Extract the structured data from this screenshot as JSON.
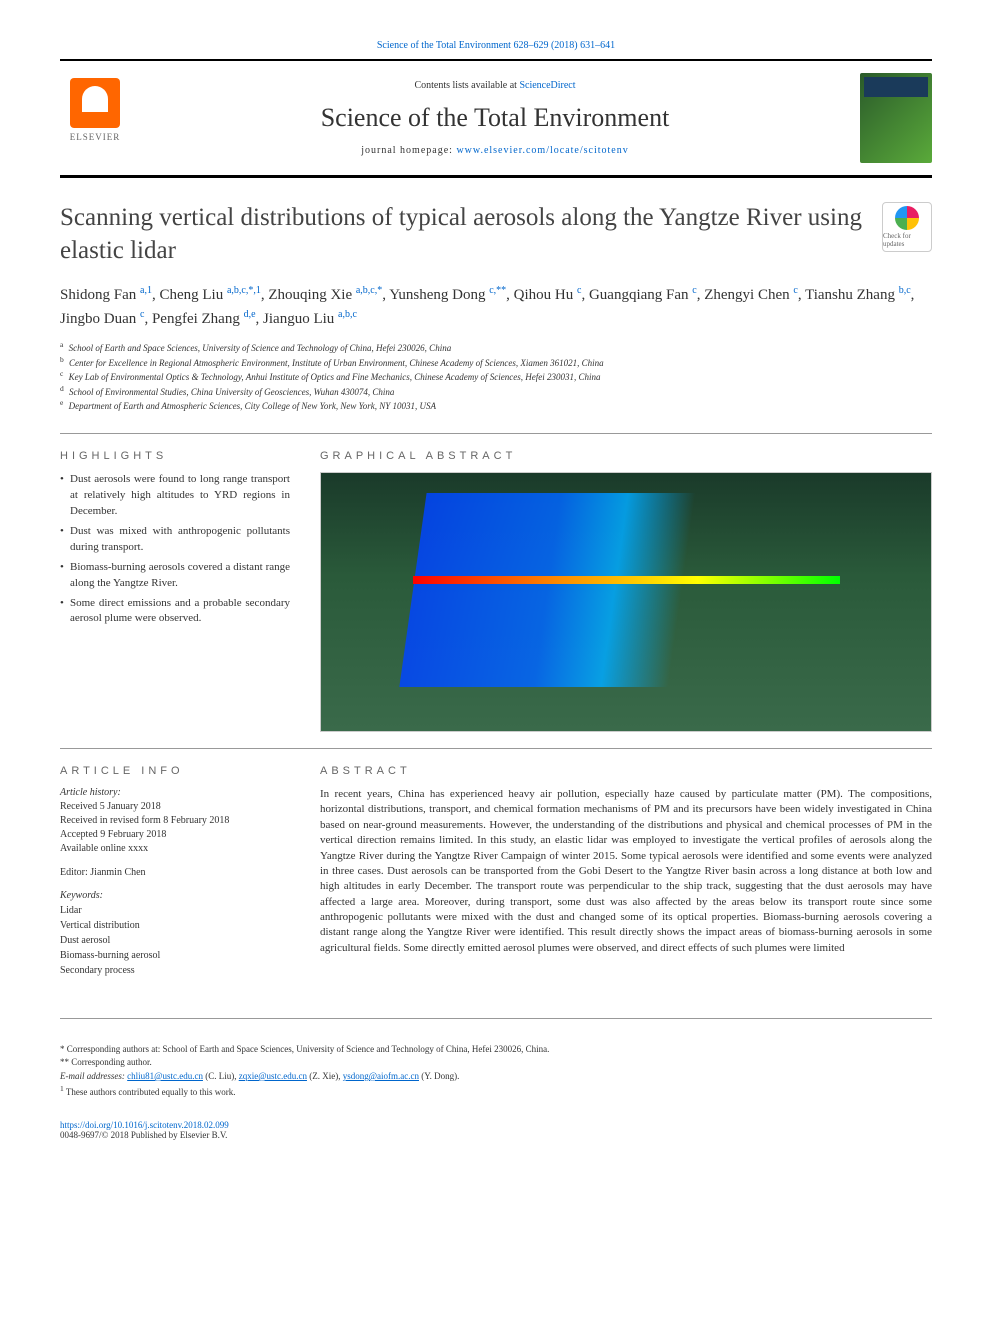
{
  "header": {
    "topLink": "Science of the Total Environment 628–629 (2018) 631–641",
    "contentsText": "Contents lists available at ",
    "contentsLink": "ScienceDirect",
    "journalName": "Science of the Total Environment",
    "homepageLabel": "journal homepage: ",
    "homepageLink": "www.elsevier.com/locate/scitotenv",
    "publisherName": "ELSEVIER",
    "coverLabel": "Science Total Environment"
  },
  "article": {
    "title": "Scanning vertical distributions of typical aerosols along the Yangtze River using elastic lidar",
    "checkUpdates": "Check for updates"
  },
  "authors": [
    {
      "name": "Shidong Fan",
      "aff": "a,1"
    },
    {
      "name": "Cheng Liu",
      "aff": "a,b,c,*,1"
    },
    {
      "name": "Zhouqing Xie",
      "aff": "a,b,c,*"
    },
    {
      "name": "Yunsheng Dong",
      "aff": "c,**"
    },
    {
      "name": "Qihou Hu",
      "aff": "c"
    },
    {
      "name": "Guangqiang Fan",
      "aff": "c"
    },
    {
      "name": "Zhengyi Chen",
      "aff": "c"
    },
    {
      "name": "Tianshu Zhang",
      "aff": "b,c"
    },
    {
      "name": "Jingbo Duan",
      "aff": "c"
    },
    {
      "name": "Pengfei Zhang",
      "aff": "d,e"
    },
    {
      "name": "Jianguo Liu",
      "aff": "a,b,c"
    }
  ],
  "affiliations": [
    {
      "sup": "a",
      "text": "School of Earth and Space Sciences, University of Science and Technology of China, Hefei 230026, China"
    },
    {
      "sup": "b",
      "text": "Center for Excellence in Regional Atmospheric Environment, Institute of Urban Environment, Chinese Academy of Sciences, Xiamen 361021, China"
    },
    {
      "sup": "c",
      "text": "Key Lab of Environmental Optics & Technology, Anhui Institute of Optics and Fine Mechanics, Chinese Academy of Sciences, Hefei 230031, China"
    },
    {
      "sup": "d",
      "text": "School of Environmental Studies, China University of Geosciences, Wuhan 430074, China"
    },
    {
      "sup": "e",
      "text": "Department of Earth and Atmospheric Sciences, City College of New York, New York, NY 10031, USA"
    }
  ],
  "sections": {
    "highlights": "HIGHLIGHTS",
    "graphicalAbstract": "GRAPHICAL ABSTRACT",
    "articleInfo": "ARTICLE INFO",
    "abstract": "ABSTRACT"
  },
  "highlights": [
    "Dust aerosols were found to long range transport at relatively high altitudes to YRD regions in December.",
    "Dust was mixed with anthropogenic pollutants during transport.",
    "Biomass-burning aerosols covered a distant range along the Yangtze River.",
    "Some direct emissions and a probable secondary aerosol plume were observed."
  ],
  "articleInfo": {
    "historyLabel": "Article history:",
    "received": "Received 5 January 2018",
    "revised": "Received in revised form 8 February 2018",
    "accepted": "Accepted 9 February 2018",
    "available": "Available online xxxx",
    "editorLabel": "Editor:",
    "editor": "Jianmin Chen",
    "keywordsLabel": "Keywords:",
    "keywords": [
      "Lidar",
      "Vertical distribution",
      "Dust aerosol",
      "Biomass-burning aerosol",
      "Secondary process"
    ]
  },
  "abstract": "In recent years, China has experienced heavy air pollution, especially haze caused by particulate matter (PM). The compositions, horizontal distributions, transport, and chemical formation mechanisms of PM and its precursors have been widely investigated in China based on near-ground measurements. However, the understanding of the distributions and physical and chemical processes of PM in the vertical direction remains limited. In this study, an elastic lidar was employed to investigate the vertical profiles of aerosols along the Yangtze River during the Yangtze River Campaign of winter 2015. Some typical aerosols were identified and some events were analyzed in three cases. Dust aerosols can be transported from the Gobi Desert to the Yangtze River basin across a long distance at both low and high altitudes in early December. The transport route was perpendicular to the ship track, suggesting that the dust aerosols may have affected a large area. Moreover, during transport, some dust was also affected by the areas below its transport route since some anthropogenic pollutants were mixed with the dust and changed some of its optical properties. Biomass-burning aerosols covering a distant range along the Yangtze River were identified. This result directly shows the impact areas of biomass-burning aerosols in some agricultural fields. Some directly emitted aerosol plumes were observed, and direct effects of such plumes were limited",
  "footnotes": {
    "corr1": "* Corresponding authors at: School of Earth and Space Sciences, University of Science and Technology of China, Hefei 230026, China.",
    "corr2": "** Corresponding author.",
    "emailLabel": "E-mail addresses:",
    "emails": [
      {
        "addr": "chliu81@ustc.edu.cn",
        "name": "(C. Liu)"
      },
      {
        "addr": "zqxie@ustc.edu.cn",
        "name": "(Z. Xie)"
      },
      {
        "addr": "ysdong@aiofm.ac.cn",
        "name": "(Y. Dong)"
      }
    ],
    "equal": "These authors contributed equally to this work.",
    "equalSup": "1"
  },
  "footer": {
    "doi": "https://doi.org/10.1016/j.scitotenv.2018.02.099",
    "copyright": "0048-9697/© 2018 Published by Elsevier B.V."
  },
  "colors": {
    "link": "#0066cc",
    "text": "#333333",
    "elsevier": "#ff6600",
    "border": "#000000"
  },
  "typography": {
    "titleSize": 25,
    "journalNameSize": 26,
    "authorSize": 15,
    "bodySize": 11,
    "smallSize": 10,
    "tinySize": 9
  }
}
